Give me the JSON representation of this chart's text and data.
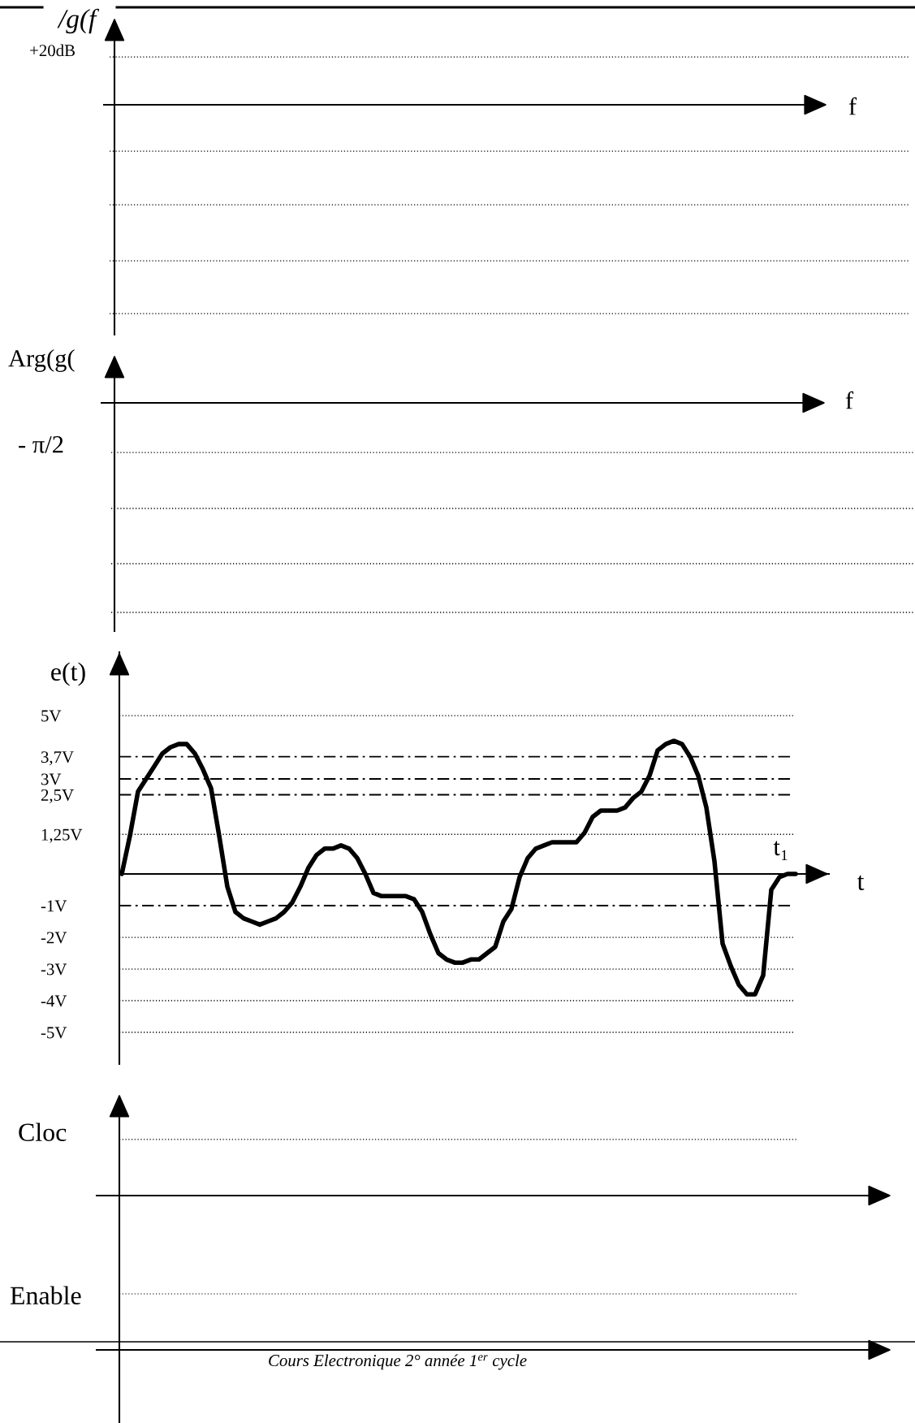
{
  "chart_data": [
    {
      "type": "other",
      "ylabel": "/g(f",
      "xlabel": "f",
      "annotations": [
        "+20dB"
      ]
    },
    {
      "type": "other",
      "ylabel": "Arg(g(",
      "xlabel": "f",
      "annotations": [
        "- π/2"
      ]
    },
    {
      "type": "line",
      "ylabel": "e(t)",
      "xlabel": "t",
      "categories": [
        null,
        null,
        null,
        null,
        null,
        null,
        null,
        null,
        null,
        null,
        null,
        null,
        null,
        null,
        null,
        null,
        null,
        null,
        null,
        null,
        null,
        null,
        null,
        null,
        null,
        null,
        null,
        null,
        null,
        null,
        null,
        null,
        null,
        null,
        null,
        null,
        null,
        null,
        null,
        null,
        null,
        null,
        null,
        null,
        null,
        null,
        null,
        null,
        null,
        null,
        null,
        null,
        null,
        null,
        null,
        null,
        null,
        null,
        null,
        null,
        null,
        null,
        null,
        null,
        null,
        null,
        null,
        null,
        null,
        null,
        null,
        null,
        null,
        null,
        null,
        null,
        null,
        null,
        null,
        null,
        null,
        null,
        null,
        null
      ],
      "series": [
        {
          "color": "#000000",
          "values": [
            0,
            1.2,
            2.6,
            3.0,
            3.4,
            3.8,
            4.0,
            4.1,
            4.1,
            3.8,
            3.3,
            2.7,
            1.2,
            -0.4,
            -1.2,
            -1.4,
            -1.5,
            -1.6,
            -1.5,
            -1.4,
            -1.2,
            -0.9,
            -0.4,
            0.2,
            0.6,
            0.8,
            0.8,
            0.9,
            0.8,
            0.5,
            0,
            -0.6,
            -0.7,
            -0.7,
            -0.7,
            -0.7,
            -0.8,
            -1.2,
            -1.9,
            -2.5,
            -2.7,
            -2.8,
            -2.8,
            -2.7,
            -2.7,
            -2.5,
            -2.3,
            -1.5,
            -1.1,
            -0.1,
            0.5,
            0.8,
            0.9,
            1.0,
            1.0,
            1.0,
            1.0,
            1.3,
            1.8,
            2.0,
            2.0,
            2.0,
            2.1,
            2.4,
            2.6,
            3.1,
            3.9,
            4.1,
            4.2,
            4.1,
            3.7,
            3.1,
            2.1,
            0.4,
            -2.2,
            -2.9,
            -3.5,
            -3.8,
            -3.8,
            -3.2,
            -0.5,
            -0.1,
            0,
            0
          ]
        }
      ],
      "ylim": [
        -6,
        7
      ],
      "yticks": [
        {
          "value": 5,
          "label": "5V"
        },
        {
          "value": 3.7,
          "label": "3,7V"
        },
        {
          "value": 3,
          "label": "3V"
        },
        {
          "value": 2.5,
          "label": "2,5V"
        },
        {
          "value": 1.25,
          "label": "1,25V"
        },
        {
          "value": -1,
          "label": "-1V"
        },
        {
          "value": -2,
          "label": "-2V"
        },
        {
          "value": -3,
          "label": "-3V"
        },
        {
          "value": -4,
          "label": "-4V"
        },
        {
          "value": -5,
          "label": "-5V"
        }
      ],
      "ref_lines": [
        {
          "axis": "y",
          "value": 5,
          "line_style": "dotted"
        },
        {
          "axis": "y",
          "value": 3.7,
          "line_style": "dashdot"
        },
        {
          "axis": "y",
          "value": 3,
          "line_style": "dashdot"
        },
        {
          "axis": "y",
          "value": 2.5,
          "line_style": "dashdot"
        },
        {
          "axis": "y",
          "value": 1.25,
          "line_style": "dotted"
        },
        {
          "axis": "y",
          "value": -1,
          "line_style": "dashdot"
        },
        {
          "axis": "y",
          "value": -2,
          "line_style": "dotted"
        },
        {
          "axis": "y",
          "value": -3,
          "line_style": "dotted"
        },
        {
          "axis": "y",
          "value": -4,
          "line_style": "dotted"
        },
        {
          "axis": "y",
          "value": -5,
          "line_style": "dotted"
        }
      ],
      "annotations": [
        "t₁"
      ]
    },
    {
      "type": "other",
      "ylabel": "Cloc"
    },
    {
      "type": "other",
      "ylabel": "Enable",
      "annotations": [
        "Cours Electronique 2° année 1$^{er}$ cycle"
      ]
    }
  ]
}
